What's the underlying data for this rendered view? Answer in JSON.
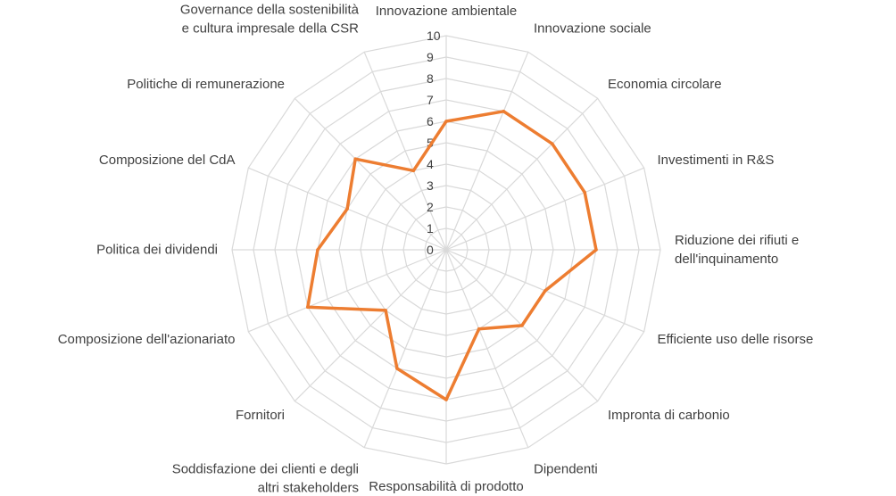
{
  "chart_data": {
    "type": "radar",
    "title": "",
    "categories": [
      "Innovazione ambientale",
      "Innovazione sociale",
      "Economia circolare",
      "Investimenti in R&S",
      "Riduzione dei rifiuti e dell'inquinamento",
      "Efficiente uso delle risorse",
      "Impronta di carbonio",
      "Dipendenti",
      "Responsabilità di prodotto",
      "Soddisfazione dei clienti e degli altri stakeholders",
      "Fornitori",
      "Composizione dell'azionariato",
      "Politica dei dividendi",
      "Composizione del CdA",
      "Politiche di remunerazione",
      "Governance della sostenibilità e cultura impresale della CSR"
    ],
    "category_lines": [
      [
        "Innovazione ambientale"
      ],
      [
        "Innovazione sociale"
      ],
      [
        "Economia circolare"
      ],
      [
        "Investimenti in R&S"
      ],
      [
        "Riduzione dei rifiuti e",
        "dell'inquinamento"
      ],
      [
        "Efficiente uso delle risorse"
      ],
      [
        "Impronta di carbonio"
      ],
      [
        "Dipendenti"
      ],
      [
        "Responsabilità di prodotto"
      ],
      [
        "Soddisfazione dei clienti e degli",
        "altri stakeholders"
      ],
      [
        "Fornitori"
      ],
      [
        "Composizione dell'azionariato"
      ],
      [
        "Politica dei dividendi"
      ],
      [
        "Composizione del CdA"
      ],
      [
        "Politiche di remunerazione"
      ],
      [
        "Governance della sostenibilità",
        "e cultura impresale della CSR"
      ]
    ],
    "series": [
      {
        "color": "#ED7D31",
        "values": [
          6,
          7,
          7,
          7,
          7,
          5,
          5,
          4,
          7,
          6,
          4,
          7,
          6,
          5,
          6,
          4
        ]
      }
    ],
    "rmin": 0,
    "rmax": 10,
    "ticks": [
      0,
      1,
      2,
      3,
      4,
      5,
      6,
      7,
      8,
      9,
      10
    ],
    "grid": true,
    "legend": "none",
    "grid_color": "#D9D9D9",
    "text_color": "#404040"
  }
}
